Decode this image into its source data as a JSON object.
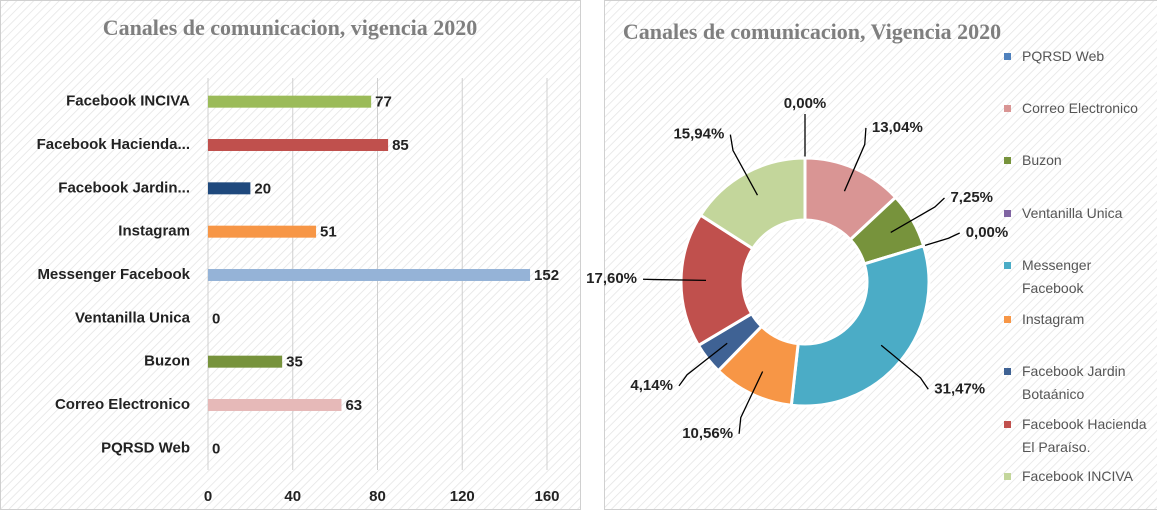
{
  "chart_data": [
    {
      "type": "hbar",
      "title": "Canales  de comunicacion, vigencia 2020",
      "categories": [
        "Facebook INCIVA",
        "Facebook Hacienda...",
        "Facebook Jardin...",
        "Instagram",
        "Messenger Facebook",
        "Ventanilla Unica",
        "Buzon",
        "Correo Electronico",
        "PQRSD Web"
      ],
      "values": [
        77,
        85,
        20,
        51,
        152,
        0,
        35,
        63,
        0
      ],
      "colors": [
        "#9bbb59",
        "#c0504d",
        "#1f497d",
        "#f79646",
        "#95b3d7",
        "#8064a2",
        "#77933c",
        "#e6b9b8",
        "#4f81bd"
      ],
      "xlim": [
        0,
        160
      ],
      "xticks": [
        0,
        40,
        80,
        120,
        160
      ],
      "grid": true
    },
    {
      "type": "donut",
      "title": "Canales de comunicacion, Vigencia 2020",
      "categories": [
        "PQRSD Web",
        "Correo Electronico",
        "Buzon",
        "Ventanilla Unica",
        "Messenger Facebook",
        "Instagram",
        "Facebook Jardin Botaánico",
        "Facebook Hacienda El Paraíso.",
        "Facebook INCIVA"
      ],
      "values": [
        0,
        13.04,
        7.25,
        0,
        31.47,
        10.56,
        4.14,
        17.6,
        15.94
      ],
      "value_labels": [
        "0,00%",
        "13,04%",
        "7,25%",
        "0,00%",
        "31,47%",
        "10,56%",
        "4,14%",
        "17,60%",
        "15,94%"
      ],
      "colors": [
        "#4f81bd",
        "#d99594",
        "#77933c",
        "#8064a2",
        "#4bacc6",
        "#f79646",
        "#3f6294",
        "#c0504d",
        "#c3d69b"
      ],
      "legend": "right"
    }
  ]
}
